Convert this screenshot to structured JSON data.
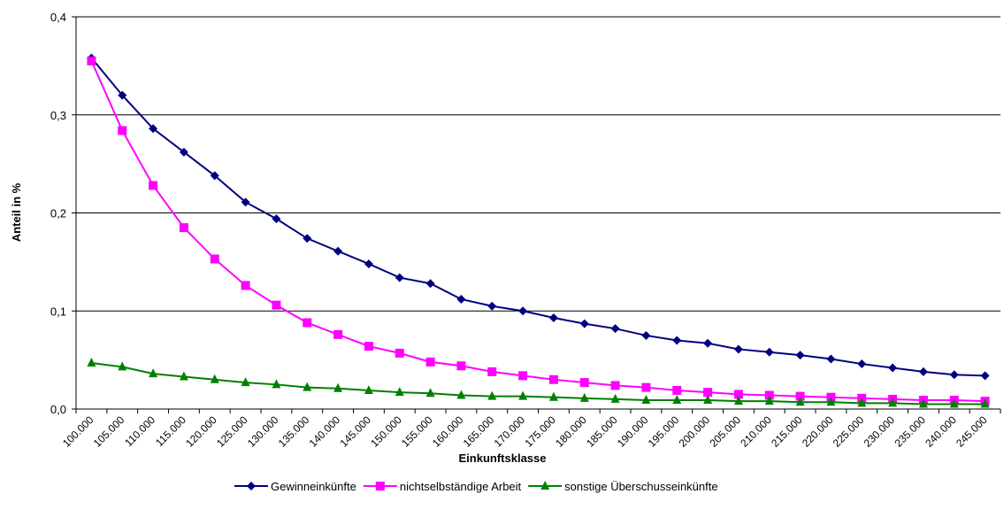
{
  "chart_data": {
    "type": "line",
    "xlabel": "Einkunftsklasse",
    "ylabel": "Anteil in %",
    "ylim": [
      0,
      0.4
    ],
    "yticks": [
      "0,0",
      "0,1",
      "0,2",
      "0,3",
      "0,4"
    ],
    "grid": true,
    "legend_position": "bottom",
    "categories": [
      "100.000",
      "105.000",
      "110.000",
      "115.000",
      "120.000",
      "125.000",
      "130.000",
      "135.000",
      "140.000",
      "145.000",
      "150.000",
      "155.000",
      "160.000",
      "165.000",
      "170.000",
      "175.000",
      "180.000",
      "185.000",
      "190.000",
      "195.000",
      "200.000",
      "205.000",
      "210.000",
      "215.000",
      "220.000",
      "225.000",
      "230.000",
      "235.000",
      "240.000",
      "245.000"
    ],
    "series": [
      {
        "name": "Gewinneinkünfte",
        "color": "#000080",
        "marker": "diamond",
        "values": [
          0.358,
          0.32,
          0.286,
          0.262,
          0.238,
          0.211,
          0.194,
          0.174,
          0.161,
          0.148,
          0.134,
          0.128,
          0.112,
          0.105,
          0.1,
          0.093,
          0.087,
          0.082,
          0.075,
          0.07,
          0.067,
          0.061,
          0.058,
          0.055,
          0.051,
          0.046,
          0.042,
          0.038,
          0.035,
          0.034
        ]
      },
      {
        "name": "nichtselbständige Arbeit",
        "color": "#ff00ff",
        "marker": "square",
        "values": [
          0.355,
          0.284,
          0.228,
          0.185,
          0.153,
          0.126,
          0.106,
          0.088,
          0.076,
          0.064,
          0.057,
          0.048,
          0.044,
          0.038,
          0.034,
          0.03,
          0.027,
          0.024,
          0.022,
          0.019,
          0.017,
          0.015,
          0.014,
          0.013,
          0.012,
          0.011,
          0.01,
          0.009,
          0.009,
          0.008
        ]
      },
      {
        "name": "sonstige Überschusseinkünfte",
        "color": "#008000",
        "marker": "triangle",
        "values": [
          0.047,
          0.043,
          0.036,
          0.033,
          0.03,
          0.027,
          0.025,
          0.022,
          0.021,
          0.019,
          0.017,
          0.016,
          0.014,
          0.013,
          0.013,
          0.012,
          0.011,
          0.01,
          0.009,
          0.009,
          0.009,
          0.008,
          0.008,
          0.007,
          0.007,
          0.006,
          0.006,
          0.005,
          0.005,
          0.005
        ]
      }
    ]
  }
}
